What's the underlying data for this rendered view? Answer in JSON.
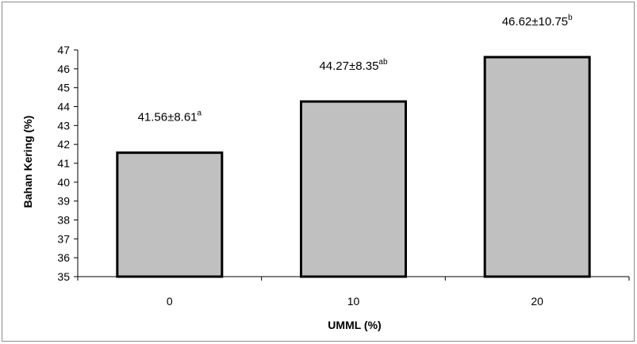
{
  "chart_data": {
    "type": "bar",
    "categories": [
      "0",
      "10",
      "20"
    ],
    "values": [
      41.56,
      44.27,
      46.62
    ],
    "data_labels": [
      {
        "text": "41.56±8.61",
        "sup": "a"
      },
      {
        "text": "44.27±8.35",
        "sup": "ab"
      },
      {
        "text": "46.62±10.75",
        "sup": "b"
      }
    ],
    "xlabel": "UMML (%)",
    "ylabel": "Bahan Kering (%)",
    "ylim": [
      35,
      47
    ],
    "yticks": [
      "35",
      "36",
      "37",
      "38",
      "39",
      "40",
      "41",
      "42",
      "43",
      "44",
      "45",
      "46",
      "47"
    ],
    "grid": false,
    "legend": "none",
    "colors": {
      "bar_fill": "#c0c0c0",
      "bar_stroke": "#000000",
      "axis": "#000000",
      "frame": "#8c8c8c"
    }
  }
}
